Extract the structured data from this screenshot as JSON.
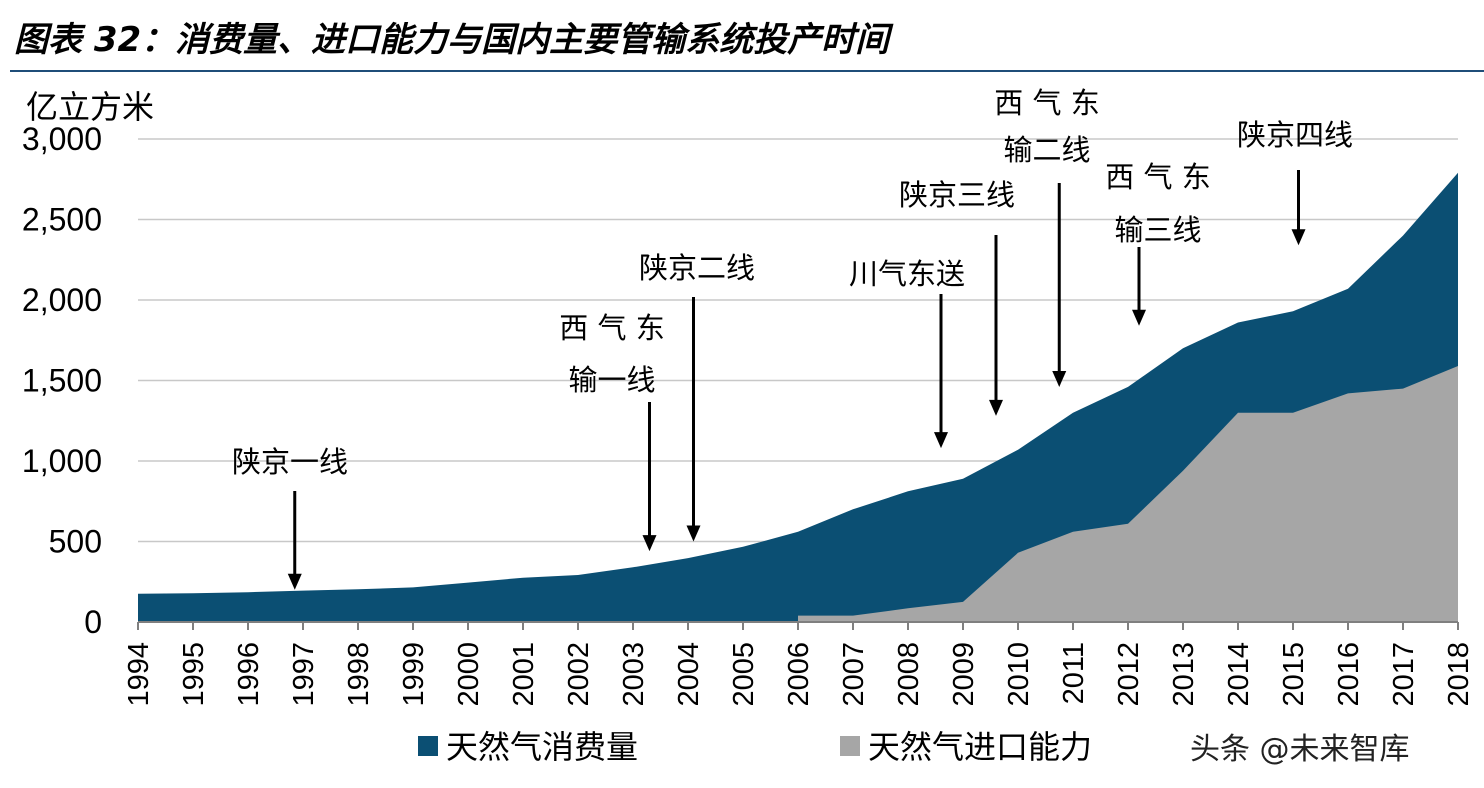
{
  "title": "图表 32：消费量、进口能力与国内主要管输系统投产时间",
  "watermark": "头条 @未来智库",
  "colors": {
    "consumption": "#0b4f73",
    "import": "#a6a6a6",
    "grid": "#c8c8c8"
  },
  "chart_data": {
    "type": "area",
    "title": "图表 32：消费量、进口能力与国内主要管输系统投产时间",
    "ylabel": "亿立方米",
    "xlabel": "",
    "ylim": [
      0,
      3000
    ],
    "yticks": [
      0,
      500,
      1000,
      1500,
      2000,
      2500,
      3000
    ],
    "ytick_labels": [
      "0",
      "500",
      "1,000",
      "1,500",
      "2,000",
      "2,500",
      "3,000"
    ],
    "grid": true,
    "legend_position": "bottom",
    "x": [
      "1994",
      "1995",
      "1996",
      "1997",
      "1998",
      "1999",
      "2000",
      "2001",
      "2002",
      "2003",
      "2004",
      "2005",
      "2006",
      "2007",
      "2008",
      "2009",
      "2010",
      "2011",
      "2012",
      "2013",
      "2014",
      "2015",
      "2016",
      "2017",
      "2018"
    ],
    "series": [
      {
        "name": "天然气消费量",
        "color": "#0b4f73",
        "values": [
          175,
          178,
          185,
          195,
          203,
          215,
          245,
          275,
          292,
          340,
          397,
          467,
          560,
          700,
          812,
          890,
          1070,
          1300,
          1460,
          1700,
          1860,
          1930,
          2070,
          2400,
          2790
        ]
      },
      {
        "name": "天然气进口能力",
        "color": "#a6a6a6",
        "values": [
          null,
          null,
          null,
          null,
          null,
          null,
          null,
          null,
          null,
          null,
          null,
          null,
          40,
          40,
          85,
          125,
          430,
          560,
          610,
          940,
          1300,
          1300,
          1420,
          1450,
          1590
        ]
      }
    ],
    "annotations": [
      {
        "lines": [
          "陕京一线"
        ],
        "x": 1996.85,
        "arrow_to": 200
      },
      {
        "lines": [
          "西 气 东",
          "输一线"
        ],
        "x": 2003.3,
        "arrow_to": 440
      },
      {
        "lines": [
          "陕京二线"
        ],
        "x": 2004.1,
        "arrow_to": 500
      },
      {
        "lines": [
          "川气东送"
        ],
        "x": 2008.6,
        "arrow_to": 1080
      },
      {
        "lines": [
          "陕京三线"
        ],
        "x": 2009.6,
        "arrow_to": 1280
      },
      {
        "lines": [
          "西 气 东",
          "输二线"
        ],
        "x": 2010.75,
        "arrow_to": 1460
      },
      {
        "lines": [
          "西 气 东",
          "输三线"
        ],
        "x": 2012.2,
        "arrow_to": 1840
      },
      {
        "lines": [
          "陕京四线"
        ],
        "x": 2015.1,
        "arrow_to": 2340
      }
    ]
  }
}
